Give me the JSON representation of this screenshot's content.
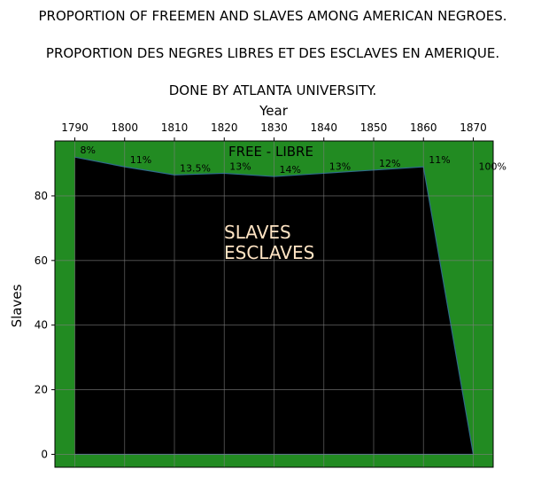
{
  "chart_data": {
    "type": "area",
    "title_lines": [
      "PROPORTION OF FREEMEN AND SLAVES AMONG AMERICAN NEGROES.",
      "PROPORTION DES NEGRES LIBRES ET DES ESCLAVES EN AMERIQUE.",
      "DONE BY ATLANTA UNIVERSITY."
    ],
    "xlabel": "Year",
    "ylabel": "Slaves",
    "x": [
      1790,
      1800,
      1810,
      1820,
      1830,
      1840,
      1850,
      1860,
      1870
    ],
    "x_ticks": [
      "1790",
      "1800",
      "1810",
      "1820",
      "1830",
      "1840",
      "1850",
      "1860",
      "1870"
    ],
    "xlim": [
      1786,
      1874
    ],
    "ylim": [
      -4,
      97
    ],
    "y_ticks": [
      0,
      20,
      40,
      60,
      80
    ],
    "grid": true,
    "series": [
      {
        "name": "SLAVES",
        "values": [
          92,
          89,
          86.5,
          87,
          86,
          87,
          88,
          89,
          0
        ]
      }
    ],
    "data_labels": [
      "8%",
      "11%",
      "13.5%",
      "13%",
      "14%",
      "13%",
      "12%",
      "11%",
      "100%"
    ],
    "annotations": {
      "free": "FREE - LIBRE",
      "slaves_line1": "SLAVES",
      "slaves_line2": "ESCLAVES"
    },
    "colors": {
      "free": "#228b22",
      "slaves": "#000000",
      "slaves_text": "#ffe4c4",
      "grid": "#7f7f7f"
    }
  }
}
